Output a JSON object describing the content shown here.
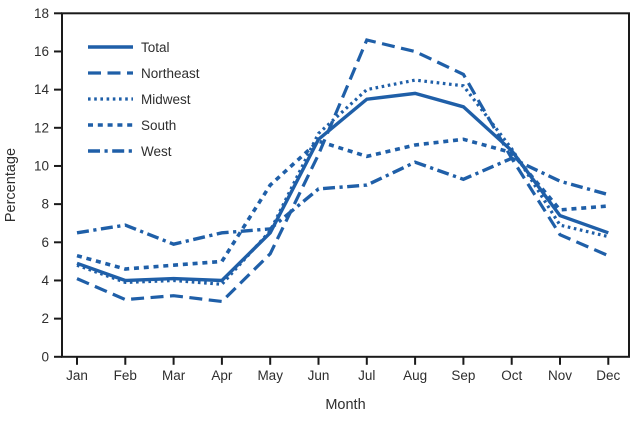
{
  "chart_data": {
    "type": "line",
    "title": "",
    "xlabel": "Month",
    "ylabel": "Percentage",
    "x_categories": [
      "Jan",
      "Feb",
      "Mar",
      "Apr",
      "May",
      "Jun",
      "Jul",
      "Aug",
      "Sep",
      "Oct",
      "Nov",
      "Dec"
    ],
    "ylim": [
      0,
      18
    ],
    "yticks": [
      0,
      2,
      4,
      6,
      8,
      10,
      12,
      14,
      16,
      18
    ],
    "grid": false,
    "legend": {
      "position": "upper-left",
      "entries": [
        "Total",
        "Northeast",
        "Midwest",
        "South",
        "West"
      ]
    },
    "series": [
      {
        "name": "Total",
        "style": "solid",
        "values": [
          4.9,
          4.0,
          4.1,
          4.0,
          6.5,
          11.4,
          13.5,
          13.8,
          13.1,
          10.8,
          7.4,
          6.5
        ]
      },
      {
        "name": "Northeast",
        "style": "long-dash",
        "values": [
          4.1,
          3.0,
          3.2,
          2.9,
          5.4,
          10.6,
          16.6,
          16.0,
          14.8,
          10.4,
          6.4,
          5.3
        ]
      },
      {
        "name": "Midwest",
        "style": "dotted",
        "values": [
          4.8,
          3.9,
          4.0,
          3.8,
          6.6,
          11.7,
          14.0,
          14.5,
          14.2,
          10.9,
          6.9,
          6.3
        ]
      },
      {
        "name": "South",
        "style": "square-dash",
        "values": [
          5.3,
          4.6,
          4.8,
          5.0,
          9.0,
          11.3,
          10.5,
          11.1,
          11.4,
          10.7,
          7.7,
          7.9
        ]
      },
      {
        "name": "West",
        "style": "dash-dot",
        "values": [
          6.5,
          6.9,
          5.9,
          6.5,
          6.7,
          8.8,
          9.0,
          10.2,
          9.3,
          10.4,
          9.2,
          8.5
        ]
      }
    ],
    "colors": {
      "line": "#1f5fa8",
      "axis": "#1a1a1a",
      "text": "#2e2e2e",
      "background": "#ffffff"
    }
  }
}
